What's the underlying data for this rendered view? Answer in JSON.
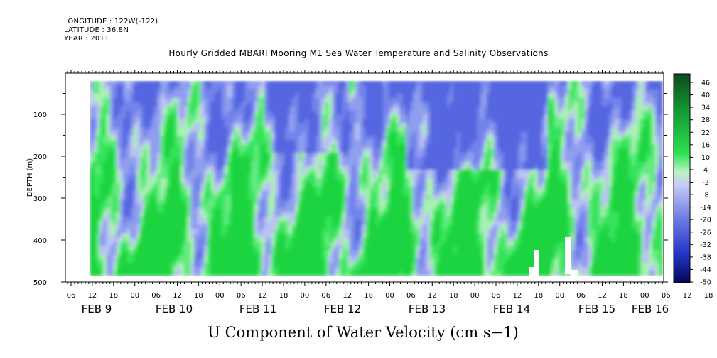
{
  "header": {
    "longitude": "LONGITUDE : 122W(-122)",
    "latitude": "LATITUDE : 36.8N",
    "year": "YEAR : 2011"
  },
  "chart_data": {
    "type": "heatmap",
    "title": "Hourly Gridded MBARI Mooring M1 Sea Water Temperature and Salinity Observations",
    "xlabel": "U Component of Water Velocity (cm s−1)",
    "ylabel": "DEPTH (m)",
    "y_ticks": [
      100,
      200,
      300,
      400,
      500
    ],
    "y_range": [
      500,
      0
    ],
    "hour_ticks": [
      "06",
      "12",
      "18",
      "00",
      "06",
      "12",
      "18",
      "00",
      "06",
      "12",
      "18",
      "00",
      "06",
      "12",
      "18",
      "00",
      "06",
      "12",
      "18",
      "00",
      "06",
      "12",
      "18",
      "00",
      "06",
      "12",
      "18",
      "00",
      "06",
      "12",
      "18",
      "00"
    ],
    "date_labels": [
      "FEB  9",
      "FEB 10",
      "FEB 11",
      "FEB 12",
      "FEB 13",
      "FEB 14",
      "FEB 15",
      "FEB 16"
    ],
    "colorbar_levels": [
      "46",
      "40",
      "34",
      "28",
      "22",
      "16",
      "10",
      "4",
      "-2",
      "-8",
      "-14",
      "-20",
      "-26",
      "-32",
      "-38",
      "-44",
      "-50"
    ],
    "colors": {
      "dominant_positive": "#2ee04e",
      "dominant_negative": "#8a9cee",
      "background": "#ffffff"
    }
  }
}
